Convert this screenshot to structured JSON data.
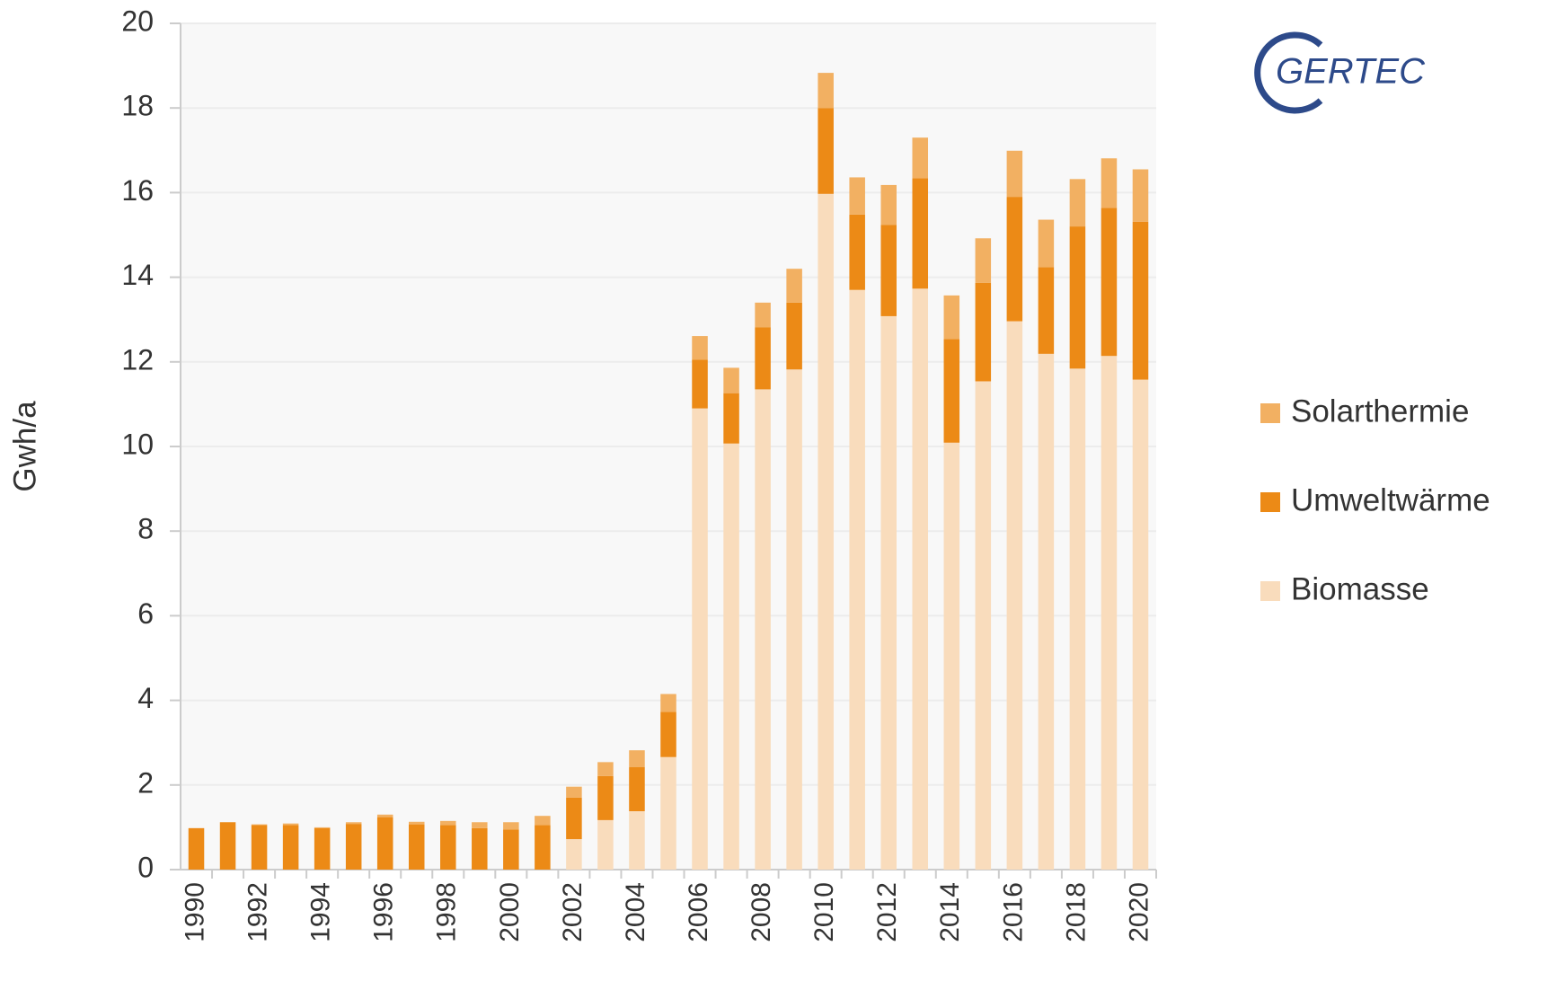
{
  "logo": "GERTEC",
  "chart_data": {
    "type": "stacked_bar",
    "ylabel": "Gwh/a",
    "categories": [
      "1990",
      null,
      "1992",
      null,
      "1994",
      null,
      "1996",
      null,
      "1998",
      null,
      "2000",
      null,
      "2002",
      null,
      "2004",
      null,
      "2006",
      null,
      "2008",
      null,
      "2010",
      null,
      "2012",
      null,
      "2014",
      null,
      "2016",
      null,
      "2018",
      null,
      "2020"
    ],
    "series": [
      {
        "name": "Biomasse",
        "color": "#f9dcbc",
        "values": [
          0,
          0,
          0,
          0,
          0,
          0,
          0,
          0,
          0,
          0,
          0,
          0,
          0.72,
          1.17,
          1.38,
          2.66,
          10.9,
          10.07,
          11.35,
          11.82,
          15.97,
          13.7,
          13.08,
          13.73,
          10.09,
          11.54,
          12.96,
          12.19,
          11.84,
          12.14,
          11.58
        ]
      },
      {
        "name": "Umweltwärme",
        "color": "#ec8a16",
        "values": [
          0.98,
          1.12,
          1.05,
          1.05,
          0.98,
          1.08,
          1.24,
          1.07,
          1.05,
          0.98,
          0.95,
          1.05,
          0.98,
          1.04,
          1.04,
          1.07,
          1.15,
          1.19,
          1.47,
          1.58,
          2.03,
          1.78,
          2.16,
          2.61,
          2.45,
          2.33,
          2.94,
          2.05,
          3.36,
          3.5,
          3.73
        ]
      },
      {
        "name": "Solarthermie",
        "color": "#f2b062",
        "values": [
          0,
          0,
          0.02,
          0.04,
          0.02,
          0.04,
          0.06,
          0.06,
          0.1,
          0.14,
          0.17,
          0.22,
          0.26,
          0.33,
          0.4,
          0.42,
          0.56,
          0.6,
          0.58,
          0.8,
          0.83,
          0.88,
          0.94,
          0.96,
          1.03,
          1.05,
          1.09,
          1.12,
          1.12,
          1.17,
          1.24
        ]
      }
    ],
    "ylim": [
      0,
      20
    ],
    "yticks": [
      0,
      2,
      4,
      6,
      8,
      10,
      12,
      14,
      16,
      18,
      20
    ],
    "grid": true,
    "legend": "right"
  }
}
